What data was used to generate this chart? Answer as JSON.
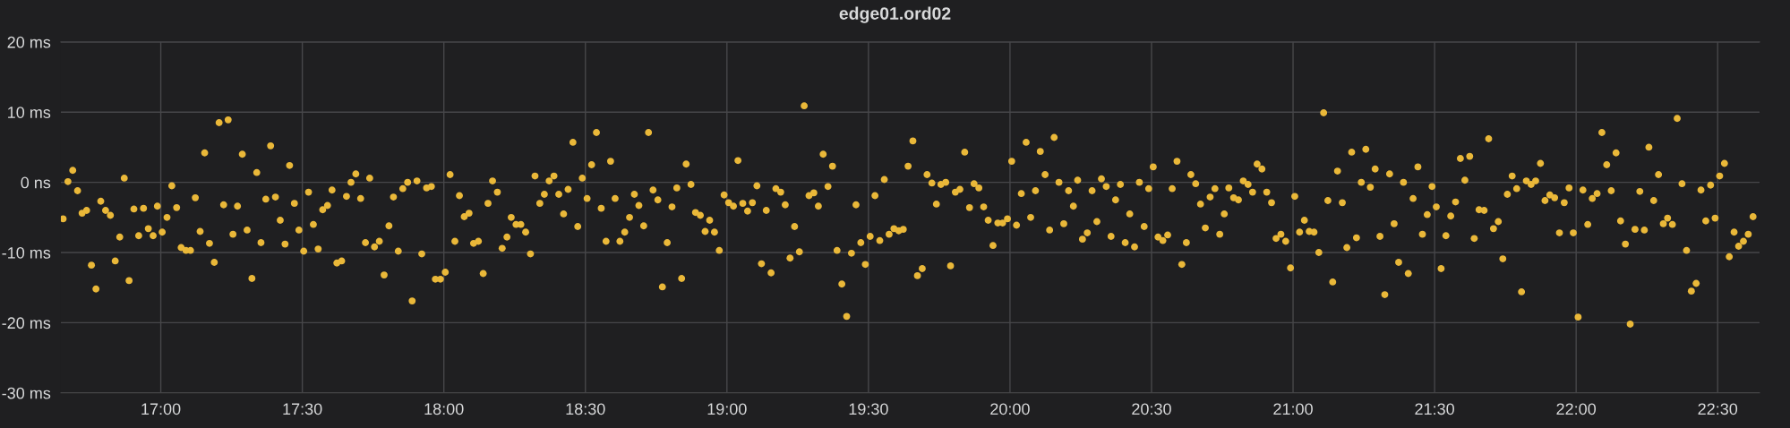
{
  "chart_data": {
    "type": "scatter",
    "title": "edge01.ord02",
    "xlim": [
      16.647,
      22.648
    ],
    "xticks": [
      {
        "value": 17,
        "label": "17:00"
      },
      {
        "value": 17.5,
        "label": "17:30"
      },
      {
        "value": 18,
        "label": "18:00"
      },
      {
        "value": 18.5,
        "label": "18:30"
      },
      {
        "value": 19,
        "label": "19:00"
      },
      {
        "value": 19.5,
        "label": "19:30"
      },
      {
        "value": 20,
        "label": "20:00"
      },
      {
        "value": 20.5,
        "label": "20:30"
      },
      {
        "value": 21,
        "label": "21:00"
      },
      {
        "value": 21.5,
        "label": "21:30"
      },
      {
        "value": 22,
        "label": "22:00"
      },
      {
        "value": 22.5,
        "label": "22:30"
      }
    ],
    "ylim": [
      -30,
      20
    ],
    "yticks": [
      {
        "value": -30,
        "label": "-30 ms"
      },
      {
        "value": -20,
        "label": "-20 ms"
      },
      {
        "value": -10,
        "label": "-10 ms"
      },
      {
        "value": 0,
        "label": "0 ns"
      },
      {
        "value": 10,
        "label": "10 ms"
      },
      {
        "value": 20,
        "label": "20 ms"
      }
    ],
    "grid": true,
    "marker": "circle",
    "series": [
      {
        "color": "#eab839",
        "x": [
          16.655,
          16.672,
          16.689,
          16.706,
          16.722,
          16.738,
          16.755,
          16.771,
          16.788,
          16.805,
          16.822,
          16.839,
          16.855,
          16.871,
          16.888,
          16.905,
          16.922,
          16.939,
          16.956,
          16.973,
          16.988,
          17.005,
          17.022,
          17.039,
          17.056,
          17.072,
          17.089,
          17.105,
          17.122,
          17.139,
          17.155,
          17.172,
          17.189,
          17.206,
          17.222,
          17.238,
          17.255,
          17.271,
          17.288,
          17.305,
          17.322,
          17.339,
          17.354,
          17.371,
          17.388,
          17.405,
          17.422,
          17.439,
          17.455,
          17.472,
          17.488,
          17.505,
          17.522,
          17.539,
          17.556,
          17.572,
          17.589,
          17.605,
          17.622,
          17.639,
          17.656,
          17.672,
          17.689,
          17.706,
          17.723,
          17.738,
          17.755,
          17.772,
          17.789,
          17.806,
          17.822,
          17.839,
          17.855,
          17.872,
          17.888,
          17.905,
          17.922,
          17.939,
          17.956,
          17.97,
          17.988,
          18.005,
          18.022,
          18.039,
          18.055,
          18.072,
          18.089,
          18.105,
          18.122,
          18.139,
          18.156,
          18.172,
          18.189,
          18.206,
          18.223,
          18.238,
          18.255,
          18.272,
          18.289,
          18.306,
          18.322,
          18.339,
          18.355,
          18.372,
          18.389,
          18.406,
          18.423,
          18.439,
          18.456,
          18.473,
          18.489,
          18.506,
          18.522,
          18.539,
          18.556,
          18.573,
          18.589,
          18.605,
          18.622,
          18.639,
          18.656,
          18.673,
          18.689,
          18.706,
          18.723,
          18.739,
          18.756,
          18.772,
          18.789,
          18.806,
          18.823,
          18.84,
          18.856,
          18.873,
          18.889,
          18.906,
          18.923,
          18.939,
          18.956,
          18.973,
          18.99,
          19.006,
          19.023,
          19.039,
          19.056,
          19.073,
          19.09,
          19.106,
          19.122,
          19.139,
          19.156,
          19.173,
          19.19,
          19.206,
          19.223,
          19.239,
          19.256,
          19.273,
          19.29,
          19.307,
          19.323,
          19.34,
          19.357,
          19.373,
          19.389,
          19.406,
          19.423,
          19.44,
          19.456,
          19.473,
          19.489,
          19.506,
          19.523,
          19.54,
          19.556,
          19.573,
          19.59,
          19.607,
          19.623,
          19.64,
          19.657,
          19.673,
          19.69,
          19.707,
          19.724,
          19.74,
          19.756,
          19.773,
          19.79,
          19.807,
          19.823,
          19.84,
          19.857,
          19.873,
          19.89,
          19.907,
          19.923,
          19.94,
          19.957,
          19.974,
          19.991,
          20.006,
          20.023,
          20.04,
          20.057,
          20.073,
          20.09,
          20.107,
          20.124,
          20.14,
          20.156,
          20.173,
          20.19,
          20.207,
          20.224,
          20.239,
          20.256,
          20.273,
          20.29,
          20.307,
          20.323,
          20.34,
          20.357,
          20.373,
          20.39,
          20.407,
          20.423,
          20.44,
          20.457,
          20.474,
          20.49,
          20.506,
          20.523,
          20.54,
          20.557,
          20.573,
          20.59,
          20.607,
          20.623,
          20.639,
          20.656,
          20.673,
          20.69,
          20.707,
          20.724,
          20.741,
          20.757,
          20.773,
          20.79,
          20.807,
          20.824,
          20.841,
          20.857,
          20.873,
          20.89,
          20.907,
          20.924,
          20.94,
          20.957,
          20.974,
          20.991,
          21.006,
          21.023,
          21.04,
          21.057,
          21.074,
          21.091,
          21.108,
          21.123,
          21.14,
          21.157,
          21.174,
          21.19,
          21.207,
          21.224,
          21.241,
          21.257,
          21.273,
          21.29,
          21.307,
          21.324,
          21.341,
          21.357,
          21.373,
          21.39,
          21.407,
          21.424,
          21.441,
          21.457,
          21.474,
          21.491,
          21.506,
          21.523,
          21.54,
          21.557,
          21.574,
          21.591,
          21.607,
          21.624,
          21.64,
          21.657,
          21.675,
          21.691,
          21.708,
          21.725,
          21.741,
          21.757,
          21.774,
          21.79,
          21.807,
          21.824,
          21.841,
          21.857,
          21.874,
          21.89,
          21.907,
          21.924,
          21.941,
          21.958,
          21.975,
          21.99,
          22.007,
          22.024,
          22.041,
          22.057,
          22.074,
          22.091,
          22.108,
          22.124,
          22.141,
          22.157,
          22.174,
          22.191,
          22.208,
          22.225,
          22.241,
          22.257,
          22.274,
          22.291,
          22.308,
          22.323,
          22.34,
          22.357,
          22.374,
          22.39,
          22.407,
          22.424,
          22.441,
          22.458,
          22.475,
          22.491,
          22.507,
          22.524,
          22.541,
          22.558,
          22.574,
          22.591,
          22.608,
          22.625
        ],
        "values": [
          -5.2,
          0.1,
          1.7,
          -1.2,
          -4.4,
          -4.0,
          -11.8,
          -15.2,
          -2.7,
          -4.0,
          -4.7,
          -11.2,
          -7.8,
          0.6,
          -14.0,
          -3.8,
          -7.6,
          -3.7,
          -6.6,
          -7.6,
          -3.4,
          -7.1,
          -5.0,
          -0.5,
          -3.6,
          -9.3,
          -9.7,
          -9.7,
          -2.2,
          -7.0,
          4.2,
          -8.7,
          -11.4,
          8.5,
          -3.2,
          8.9,
          -7.4,
          -3.4,
          4.0,
          -6.8,
          -13.7,
          1.4,
          -8.6,
          -2.4,
          5.2,
          -2.1,
          -5.4,
          -8.8,
          2.4,
          -3.0,
          -6.8,
          -9.8,
          -1.4,
          -6.0,
          -9.5,
          -3.9,
          -3.3,
          -1.1,
          -11.5,
          -11.2,
          -2.0,
          0.0,
          1.2,
          -2.3,
          -8.6,
          0.6,
          -9.2,
          -8.4,
          -13.2,
          -6.2,
          -2.1,
          -9.8,
          -0.9,
          0.0,
          -16.9,
          0.2,
          -10.2,
          -0.8,
          -0.6,
          -13.8,
          -13.8,
          -12.8,
          1.1,
          -8.4,
          -1.9,
          -4.9,
          -4.4,
          -8.7,
          -8.4,
          -13.0,
          -3.0,
          0.2,
          -1.4,
          -9.4,
          -7.8,
          -5.0,
          -6.0,
          -6.0,
          -7.1,
          -10.2,
          0.9,
          -3.0,
          -1.7,
          0.2,
          0.9,
          -1.7,
          -4.5,
          -1.0,
          5.7,
          -6.3,
          0.6,
          -2.3,
          2.5,
          7.1,
          -3.7,
          -8.4,
          3.0,
          -2.3,
          -8.4,
          -7.1,
          -5.0,
          -1.7,
          -3.3,
          -6.2,
          7.1,
          -1.1,
          -2.5,
          -14.9,
          -8.6,
          -3.5,
          -0.8,
          -13.7,
          2.6,
          -0.3,
          -4.3,
          -4.7,
          -7.0,
          -5.4,
          -7.1,
          -9.7,
          -1.8,
          -2.9,
          -3.4,
          3.1,
          -3.0,
          -4.1,
          -2.9,
          -0.5,
          -11.6,
          -4.0,
          -12.9,
          -0.9,
          -1.4,
          -3.2,
          -10.8,
          -6.3,
          -9.9,
          10.9,
          -1.9,
          -1.5,
          -3.4,
          4.0,
          -0.6,
          2.3,
          -9.7,
          -14.5,
          -19.1,
          -10.1,
          -3.2,
          -8.6,
          -11.7,
          -7.7,
          -1.9,
          -8.3,
          0.4,
          -7.4,
          -6.6,
          -6.9,
          -6.7,
          2.3,
          5.9,
          -13.3,
          -12.3,
          1.1,
          -0.1,
          -3.1,
          -0.3,
          0.0,
          -11.9,
          -1.4,
          -1.0,
          4.3,
          -3.6,
          -0.2,
          -0.8,
          -3.5,
          -5.4,
          -9.0,
          -5.8,
          -5.8,
          -5.2,
          3.0,
          -6.1,
          -1.6,
          5.7,
          -5.0,
          -1.2,
          4.4,
          1.1,
          -6.8,
          6.4,
          0.0,
          -5.9,
          -1.2,
          -3.4,
          0.3,
          -8.1,
          -7.2,
          -1.2,
          -5.6,
          0.5,
          -0.6,
          -7.7,
          -2.5,
          -0.3,
          -8.6,
          -4.5,
          -9.2,
          0.0,
          -6.3,
          -0.9,
          2.2,
          -7.8,
          -8.3,
          -7.5,
          -0.9,
          3.0,
          -11.7,
          -8.6,
          1.1,
          -0.2,
          -3.1,
          -6.5,
          -2.1,
          -0.9,
          -7.4,
          -4.5,
          -0.8,
          -2.2,
          -2.5,
          0.2,
          -0.3,
          -1.4,
          2.6,
          1.9,
          -1.4,
          -2.9,
          -8.0,
          -7.4,
          -8.4,
          -12.2,
          -2.0,
          -7.1,
          -5.4,
          -7.0,
          -7.1,
          -10.0,
          9.9,
          -2.6,
          -14.2,
          1.6,
          -2.9,
          -9.3,
          4.3,
          -7.9,
          0.0,
          4.7,
          -0.7,
          1.9,
          -7.7,
          -16.0,
          1.2,
          -5.9,
          -11.4,
          0.0,
          -13.0,
          -2.3,
          2.2,
          -7.4,
          -4.6,
          -0.6,
          -3.5,
          -12.3,
          -7.6,
          -4.8,
          -2.8,
          3.4,
          0.3,
          3.7,
          -8.0,
          -3.9,
          -4.0,
          6.2,
          -6.6,
          -5.6,
          -10.9,
          -1.7,
          0.9,
          -0.9,
          -15.6,
          0.2,
          -0.3,
          0.2,
          2.7,
          -2.6,
          -1.8,
          -2.2,
          -7.2,
          -2.9,
          -0.8,
          -7.2,
          -19.2,
          -1.1,
          -6.0,
          -2.3,
          -1.6,
          7.1,
          2.5,
          -1.2,
          4.2,
          -5.5,
          -8.8,
          -20.2,
          -6.7,
          -1.3,
          -6.8,
          5.0,
          -2.6,
          1.1,
          -5.9,
          -5.1,
          -6.0,
          9.1,
          -0.2,
          -9.7,
          -15.5,
          -14.4,
          -1.1,
          -5.5,
          -0.4,
          -5.1,
          0.9,
          2.7,
          -10.6,
          -7.1,
          -9.1,
          -8.4,
          -7.4,
          -4.9
        ]
      }
    ]
  }
}
